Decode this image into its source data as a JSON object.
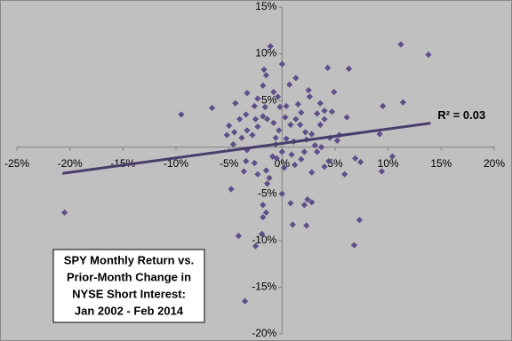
{
  "chart_data": {
    "type": "scatter",
    "title": [
      "SPY Monthly Return vs.",
      "Prior-Month Change in",
      "NYSE Short Interest:",
      "Jan 2002 - Feb 2014"
    ],
    "color": "#5e4f88",
    "x": [
      -20.5,
      13.8,
      11.2,
      6.3,
      4.3,
      0,
      1.3,
      -1.7,
      -1.1,
      -9.5,
      -6.6,
      -3.3,
      -1.8,
      -1.5,
      -2.6,
      -4.4,
      -0.8,
      -0.4,
      0.4,
      1.5,
      2.5,
      2.6,
      3.6,
      4.0,
      4.7,
      4.9,
      6.1,
      11.4,
      9.5,
      9.2,
      10.4,
      9.4,
      6.9,
      7.4,
      5.9,
      6.8,
      7.3,
      5.2,
      5.4,
      4.5,
      4.4,
      4.0,
      2.8,
      2.8,
      2.4,
      2.1,
      2.3,
      1.0,
      0.8,
      0,
      -1.2,
      -1.4,
      -1.8,
      -1.8,
      -1.5,
      -1.9,
      -2.5,
      -4.1,
      -3.5,
      -4.8,
      -3.6,
      -3.4,
      -3.3,
      -2.6,
      -2.3,
      -1.5,
      -0.9,
      -0.5,
      0,
      0.2,
      0.9,
      1.2,
      1.8,
      2.1,
      3.1,
      3.3,
      3.7,
      2.8,
      2.2,
      1.7,
      1.3,
      0.8,
      0.3,
      -0.3,
      -0.8,
      -1.4,
      -1.8,
      -2.3,
      -2.8,
      -3.3,
      -3.8,
      -4.5,
      -5.2,
      -5.0,
      -4.6,
      -4.0,
      -3.4,
      -2.5,
      -0.6,
      -0.6,
      0.4,
      1.1,
      2.3,
      1.8,
      3.6,
      4.0,
      3.3,
      0.7,
      -0.2,
      -1.6,
      -2.3
    ],
    "values": [
      -7.0,
      9.9,
      11.0,
      8.4,
      8.5,
      8.9,
      7.4,
      8.3,
      10.8,
      3.5,
      4.2,
      5.8,
      6.6,
      7.7,
      4.4,
      4.7,
      5.9,
      5.4,
      4.4,
      4.6,
      6.1,
      5.4,
      4.7,
      3.9,
      3.8,
      5.9,
      3.2,
      4.8,
      4.4,
      1.4,
      -1.0,
      -2.6,
      -1.2,
      -1.6,
      -2.9,
      -10.5,
      -7.8,
      0.7,
      1.3,
      1.0,
      -1.5,
      -2.1,
      -2.7,
      -5.9,
      -5.6,
      -6.2,
      -8.4,
      -8.3,
      -6.0,
      -5.0,
      -3.3,
      -3.9,
      -6.2,
      -7.5,
      -7.0,
      -9.3,
      -10.6,
      -9.5,
      -16.5,
      -4.5,
      -2.6,
      -1.5,
      -0.3,
      -1.7,
      -2.9,
      -2.5,
      -1.0,
      -1.2,
      -0.5,
      -2.2,
      -0.8,
      -1.9,
      -1.3,
      -0.5,
      0.2,
      -0.5,
      0,
      1.4,
      1.6,
      2.4,
      3.0,
      2.4,
      3.2,
      1.8,
      2.6,
      3.0,
      3.3,
      2.2,
      1.3,
      1.8,
      1.0,
      1.6,
      1.3,
      2.3,
      0.3,
      3.0,
      3.5,
      3.0,
      1.0,
      0.3,
      0.9,
      0.6,
      0.8,
      3.7,
      2.4,
      3.0,
      3.6,
      6.7,
      4.3,
      4.3,
      5.2
    ],
    "trendline": {
      "slope": 0.155,
      "intercept": 0.4,
      "x_range": [
        -20.7,
        14
      ],
      "label": "R² = 0.03",
      "color": "#4a3c6a"
    },
    "xlim": [
      -25,
      20
    ],
    "ylim": [
      -20,
      15
    ],
    "xticks": [
      {
        "value": -25,
        "label": "-25%"
      },
      {
        "value": -20,
        "label": "-20%"
      },
      {
        "value": -15,
        "label": "-15%"
      },
      {
        "value": -10,
        "label": "-10%"
      },
      {
        "value": -5,
        "label": "-5%"
      },
      {
        "value": 0,
        "label": "0%"
      },
      {
        "value": 5,
        "label": "5%"
      },
      {
        "value": 10,
        "label": "10%"
      },
      {
        "value": 15,
        "label": "15%"
      },
      {
        "value": 20,
        "label": "20%"
      }
    ],
    "yticks": [
      {
        "value": 15,
        "label": "15%"
      },
      {
        "value": 10,
        "label": "10%"
      },
      {
        "value": 5,
        "label": "5%"
      },
      {
        "value": -5,
        "label": "-5%"
      },
      {
        "value": -10,
        "label": "-10%"
      },
      {
        "value": -15,
        "label": "-15%"
      },
      {
        "value": -20,
        "label": "-20%"
      }
    ]
  }
}
